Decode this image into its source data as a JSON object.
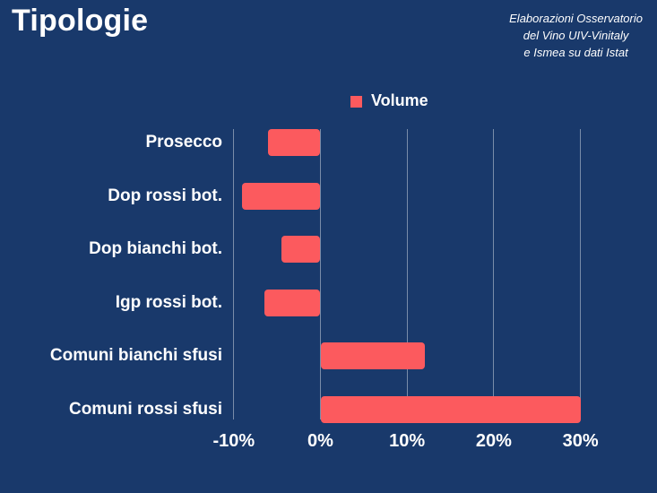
{
  "header": {
    "title": "Tipologie",
    "attribution_lines": [
      "Elaborazioni Osservatorio",
      "del Vino UIV-Vinitaly",
      "e Ismea su dati Istat"
    ]
  },
  "legend": {
    "items": [
      {
        "label": "Volume",
        "swatch_color": "#FC5A5E"
      }
    ]
  },
  "colors": {
    "background": "#19396B",
    "bar": "#FC5A5E",
    "text": "#FFFFFF",
    "gridline": "rgba(255,255,255,0.42)"
  },
  "chart_data": {
    "type": "bar",
    "orientation": "horizontal",
    "title": "Tipologie",
    "categories": [
      "Prosecco",
      "Dop rossi bot.",
      "Dop bianchi bot.",
      "Igp rossi bot.",
      "Comuni bianchi sfusi",
      "Comuni rossi sfusi"
    ],
    "series": [
      {
        "name": "Volume",
        "values": [
          -6,
          -9,
          -4.5,
          -6.5,
          12,
          30
        ]
      }
    ],
    "value_unit": "%",
    "x_ticks": [
      -10,
      0,
      10,
      20,
      30
    ],
    "x_tick_labels": [
      "-10%",
      "0%",
      "10%",
      "20%",
      "30%"
    ],
    "xlim": [
      -10,
      35
    ],
    "grid": "vertical",
    "legend_position": "top-center"
  }
}
